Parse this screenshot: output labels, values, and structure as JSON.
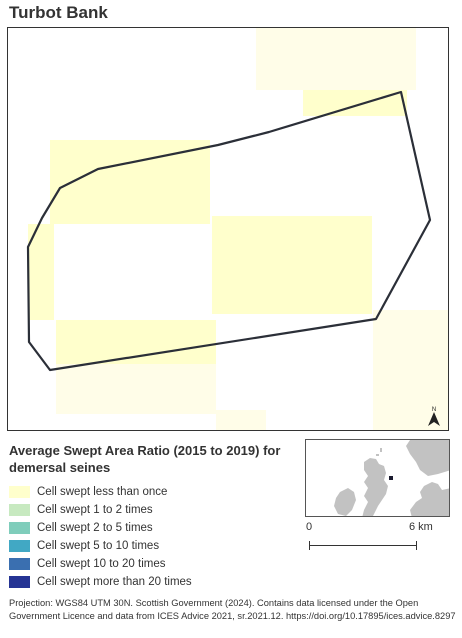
{
  "map": {
    "title": "Turbot Bank",
    "north_icon": "north-arrow-icon"
  },
  "legend": {
    "title": "Average Swept Area Ratio (2015 to 2019) for demersal seines",
    "items": [
      {
        "label": "Cell swept less than once",
        "color": "#ffffcc"
      },
      {
        "label": "Cell swept 1 to 2 times",
        "color": "#c7e9c0"
      },
      {
        "label": "Cell swept 2 to 5 times",
        "color": "#7fcdbb"
      },
      {
        "label": "Cell swept 5 to 10 times",
        "color": "#41a8c4"
      },
      {
        "label": "Cell swept 10 to 20 times",
        "color": "#3a6fb0"
      },
      {
        "label": "Cell swept more than 20 times",
        "color": "#253494"
      }
    ]
  },
  "scale": {
    "start_label": "0",
    "end_label": "6 km"
  },
  "attribution": "Projection: WGS84 UTM 30N. Scottish Government (2024). Contains data licensed under the Open Government Licence and data from ICES Advice 2021, sr.2021.12. https://doi.org/10.17895/ices.advice.8297",
  "colors": {
    "cell_fill": "#ffffcc",
    "boundary": "#2b2f38",
    "land": "#c2c2c2",
    "sea": "#ffffff"
  }
}
